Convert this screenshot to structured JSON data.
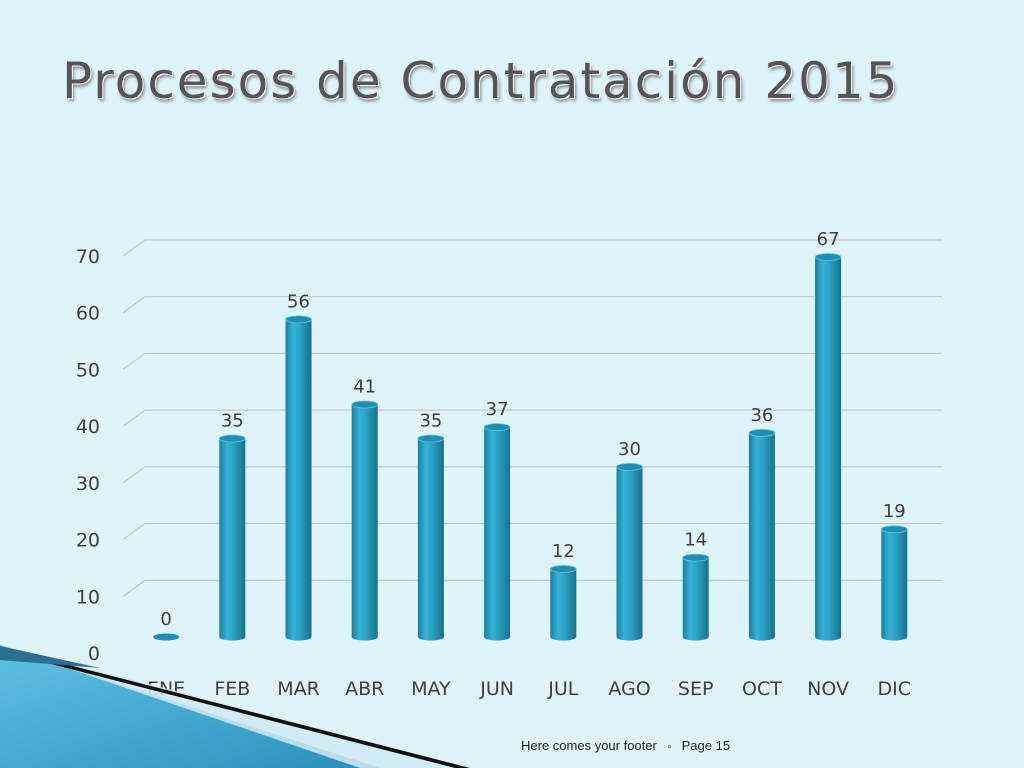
{
  "slide": {
    "title": "Procesos de Contratación 2015",
    "footer_text": "Here comes your footer",
    "footer_separator": "▫",
    "page_label": "Page 15"
  },
  "colors": {
    "background": "#dff4fa",
    "bar": "#2ea6c8",
    "gridline": "#bfbfbf",
    "text": "#404040"
  },
  "chart_data": {
    "type": "bar",
    "title": "",
    "xlabel": "",
    "ylabel": "",
    "categories": [
      "ENE",
      "FEB",
      "MAR",
      "ABR",
      "MAY",
      "JUN",
      "JUL",
      "AGO",
      "SEP",
      "OCT",
      "NOV",
      "DIC"
    ],
    "values": [
      0,
      35,
      56,
      41,
      35,
      37,
      12,
      30,
      14,
      36,
      67,
      19
    ],
    "data_labels": [
      "0",
      "35",
      "56",
      "41",
      "35",
      "37",
      "12",
      "30",
      "14",
      "36",
      "67",
      "19"
    ],
    "ylim": [
      0,
      70
    ],
    "yticks": [
      0,
      10,
      20,
      30,
      40,
      50,
      60,
      70
    ],
    "grid": true,
    "legend": "none"
  }
}
